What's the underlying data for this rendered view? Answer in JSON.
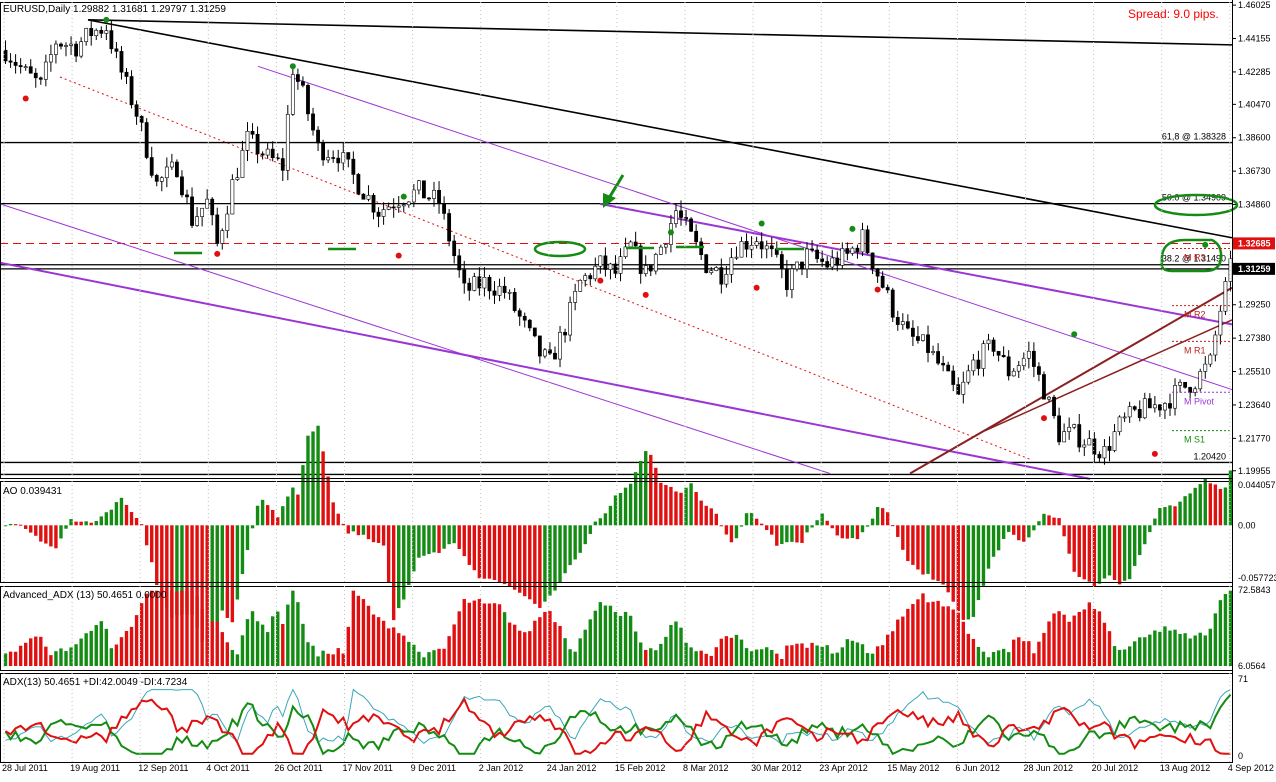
{
  "window": {
    "spread_text": "Spread: 9.0 pips."
  },
  "colors": {
    "bull": "#148c14",
    "bear": "#e01010",
    "axis": "#000000",
    "grid": "#c0c0c0",
    "purple": "#9b35d6",
    "brown": "#8b2020",
    "green_ann": "#148c14",
    "ref_line": "#000000"
  },
  "chart_data": [
    {
      "type": "candlestick",
      "title": "EURUSD,Daily  1.29882 1.31681 1.29797 1.31259",
      "price_axis": {
        "ylim": [
          1.1955,
          1.462
        ],
        "ticks": [
          "1.46025",
          "1.44155",
          "1.42285",
          "1.40470",
          "1.38600",
          "1.36730",
          "1.34860",
          "1.32685",
          "1.31259",
          "1.29250",
          "1.27380",
          "1.25510",
          "1.23640",
          "1.21770",
          "1.19955"
        ],
        "current_price_label": "1.31259",
        "level_label": "1.32685"
      },
      "date_labels": [
        "28 Jul 2011",
        "19 Aug 2011",
        "12 Sep 2011",
        "4 Oct 2011",
        "26 Oct 2011",
        "17 Nov 2011",
        "9 Dec 2011",
        "2 Jan 2012",
        "24 Jan 2012",
        "15 Feb 2012",
        "8 Mar 2012",
        "30 Mar 2012",
        "23 Apr 2012",
        "15 May 2012",
        "6 Jun 2012",
        "28 Jun 2012",
        "20 Jul 2012",
        "13 Aug 2012",
        "4 Sep 2012"
      ],
      "close_path": [
        [
          0,
          1.435
        ],
        [
          4,
          1.422
        ],
        [
          7,
          1.415
        ],
        [
          10,
          1.44
        ],
        [
          14,
          1.437
        ],
        [
          17,
          1.445
        ],
        [
          20,
          1.448
        ],
        [
          22,
          1.43
        ],
        [
          26,
          1.4
        ],
        [
          30,
          1.36
        ],
        [
          34,
          1.37
        ],
        [
          37,
          1.34
        ],
        [
          40,
          1.35
        ],
        [
          42,
          1.326
        ],
        [
          45,
          1.36
        ],
        [
          48,
          1.385
        ],
        [
          52,
          1.375
        ],
        [
          55,
          1.37
        ],
        [
          57,
          1.425
        ],
        [
          59,
          1.41
        ],
        [
          62,
          1.38
        ],
        [
          66,
          1.377
        ],
        [
          70,
          1.36
        ],
        [
          74,
          1.345
        ],
        [
          78,
          1.352
        ],
        [
          82,
          1.356
        ],
        [
          86,
          1.35
        ],
        [
          88,
          1.33
        ],
        [
          91,
          1.3
        ],
        [
          95,
          1.305
        ],
        [
          99,
          1.3
        ],
        [
          103,
          1.28
        ],
        [
          106,
          1.265
        ],
        [
          108,
          1.26
        ],
        [
          111,
          1.28
        ],
        [
          114,
          1.305
        ],
        [
          118,
          1.315
        ],
        [
          121,
          1.31
        ],
        [
          124,
          1.325
        ],
        [
          127,
          1.31
        ],
        [
          130,
          1.325
        ],
        [
          133,
          1.345
        ],
        [
          136,
          1.33
        ],
        [
          139,
          1.315
        ],
        [
          142,
          1.31
        ],
        [
          145,
          1.325
        ],
        [
          149,
          1.33
        ],
        [
          152,
          1.32
        ],
        [
          155,
          1.305
        ],
        [
          159,
          1.32
        ],
        [
          163,
          1.315
        ],
        [
          167,
          1.32
        ],
        [
          170,
          1.33
        ],
        [
          173,
          1.31
        ],
        [
          176,
          1.29
        ],
        [
          179,
          1.275
        ],
        [
          183,
          1.268
        ],
        [
          186,
          1.255
        ],
        [
          189,
          1.24
        ],
        [
          192,
          1.26
        ],
        [
          196,
          1.27
        ],
        [
          199,
          1.255
        ],
        [
          203,
          1.265
        ],
        [
          206,
          1.245
        ],
        [
          209,
          1.22
        ],
        [
          212,
          1.22
        ],
        [
          215,
          1.215
        ],
        [
          218,
          1.21
        ],
        [
          221,
          1.225
        ],
        [
          224,
          1.232
        ],
        [
          227,
          1.235
        ],
        [
          230,
          1.238
        ],
        [
          233,
          1.245
        ],
        [
          236,
          1.25
        ],
        [
          239,
          1.26
        ],
        [
          241,
          1.29
        ],
        [
          243,
          1.3126
        ]
      ],
      "horizontal_levels": [
        {
          "price": 1.3833,
          "label": "61,8 @ 1.38328"
        },
        {
          "price": 1.3491,
          "label": "50.0 @ 1.34909"
        },
        {
          "price": 1.3149,
          "label": "38.2 @ 1.31490"
        },
        {
          "price": 1.2042,
          "label": "1.20420"
        }
      ],
      "monthly_pivots": [
        {
          "label": "M R3",
          "price": 1.324
        },
        {
          "label": "M R2",
          "price": 1.292
        },
        {
          "label": "M R1",
          "price": 1.272
        },
        {
          "label": "M Pivot",
          "price": 1.2435
        },
        {
          "label": "M S1",
          "price": 1.222
        }
      ]
    },
    {
      "type": "bar",
      "title": "AO 0.039431",
      "ticks": [
        "0.044057",
        "0.00",
        "-0.057723"
      ],
      "ylim": [
        -0.0577,
        0.0441
      ]
    },
    {
      "type": "bar",
      "title": "Advanced_ADX (13) 50.4651 0.0000",
      "ticks": [
        "72.5843",
        "6.0564"
      ],
      "ylim": [
        6.06,
        72.58
      ]
    },
    {
      "type": "line",
      "title": "ADX(13) 50.4651 +DI:42.0049 -DI:4.7234",
      "ticks": [
        "71",
        "0"
      ],
      "ylim": [
        0,
        71
      ],
      "series": [
        {
          "name": "ADX"
        },
        {
          "name": "+DI"
        },
        {
          "name": "-DI"
        }
      ]
    }
  ]
}
